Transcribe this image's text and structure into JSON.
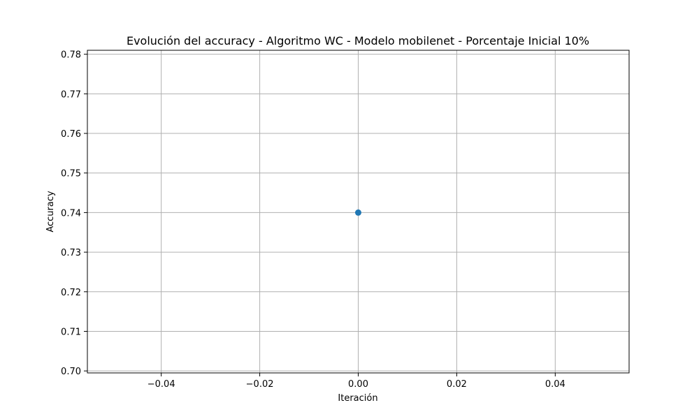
{
  "chart_data": {
    "type": "line",
    "title": "Evolución del accuracy - Algoritmo WC - Modelo mobilenet - Porcentaje Inicial 10%",
    "xlabel": "Iteración",
    "ylabel": "Accuracy",
    "xlim": [
      -0.055,
      0.055
    ],
    "ylim": [
      0.6995,
      0.781
    ],
    "x_ticks": [
      -0.04,
      -0.02,
      0.0,
      0.02,
      0.04
    ],
    "x_tick_labels": [
      "−0.04",
      "−0.02",
      "0.00",
      "0.02",
      "0.04"
    ],
    "y_ticks": [
      0.7,
      0.71,
      0.72,
      0.73,
      0.74,
      0.75,
      0.76,
      0.77,
      0.78
    ],
    "y_tick_labels": [
      "0.70",
      "0.71",
      "0.72",
      "0.73",
      "0.74",
      "0.75",
      "0.76",
      "0.77",
      "0.78"
    ],
    "grid": true,
    "series": [
      {
        "color": "#1f77b4",
        "marker": "circle",
        "x": [
          0
        ],
        "y": [
          0.74
        ]
      }
    ]
  }
}
